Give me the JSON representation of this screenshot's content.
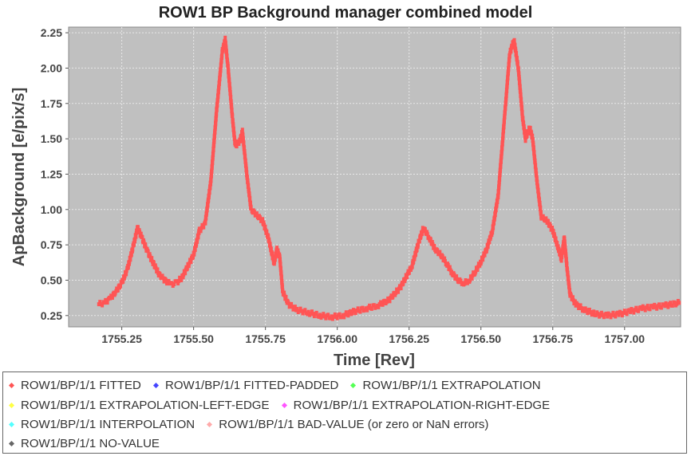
{
  "chart_data": {
    "type": "scatter",
    "title": "ROW1 BP Background manager combined model",
    "xlabel": "Time [Rev]",
    "ylabel": "ApBackground [e/pix/s]",
    "xlim": [
      1755.065,
      1757.195
    ],
    "ylim": [
      0.17,
      2.29
    ],
    "xticks": [
      "1755.25",
      "1755.50",
      "1755.75",
      "1756.00",
      "1756.25",
      "1756.50",
      "1756.75",
      "1757.00"
    ],
    "yticks": [
      "0.25",
      "0.50",
      "0.75",
      "1.00",
      "1.25",
      "1.50",
      "1.75",
      "2.00",
      "2.25"
    ],
    "grid": true,
    "background_color": "#c0c0c0",
    "series": [
      {
        "name": "ROW1/BP/1/1 FITTED",
        "color": "#ff5555",
        "points": [
          [
            1755.17,
            0.33
          ],
          [
            1755.19,
            0.34
          ],
          [
            1755.21,
            0.37
          ],
          [
            1755.23,
            0.42
          ],
          [
            1755.25,
            0.48
          ],
          [
            1755.27,
            0.58
          ],
          [
            1755.29,
            0.74
          ],
          [
            1755.305,
            0.87
          ],
          [
            1755.32,
            0.8
          ],
          [
            1755.34,
            0.7
          ],
          [
            1755.36,
            0.62
          ],
          [
            1755.38,
            0.54
          ],
          [
            1755.4,
            0.5
          ],
          [
            1755.42,
            0.47
          ],
          [
            1755.44,
            0.48
          ],
          [
            1755.46,
            0.52
          ],
          [
            1755.48,
            0.6
          ],
          [
            1755.5,
            0.68
          ],
          [
            1755.52,
            0.85
          ],
          [
            1755.54,
            0.9
          ],
          [
            1755.56,
            1.2
          ],
          [
            1755.58,
            1.7
          ],
          [
            1755.6,
            2.12
          ],
          [
            1755.61,
            2.2
          ],
          [
            1755.62,
            2.0
          ],
          [
            1755.635,
            1.65
          ],
          [
            1755.645,
            1.45
          ],
          [
            1755.66,
            1.48
          ],
          [
            1755.67,
            1.55
          ],
          [
            1755.685,
            1.25
          ],
          [
            1755.7,
            1.0
          ],
          [
            1755.72,
            0.96
          ],
          [
            1755.74,
            0.92
          ],
          [
            1755.76,
            0.8
          ],
          [
            1755.78,
            0.62
          ],
          [
            1755.79,
            0.72
          ],
          [
            1755.8,
            0.66
          ],
          [
            1755.81,
            0.42
          ],
          [
            1755.83,
            0.33
          ],
          [
            1755.86,
            0.29
          ],
          [
            1755.9,
            0.27
          ],
          [
            1755.94,
            0.25
          ],
          [
            1755.98,
            0.24
          ],
          [
            1756.02,
            0.25
          ],
          [
            1756.06,
            0.28
          ],
          [
            1756.1,
            0.3
          ],
          [
            1756.14,
            0.32
          ],
          [
            1756.18,
            0.36
          ],
          [
            1756.22,
            0.45
          ],
          [
            1756.26,
            0.6
          ],
          [
            1756.285,
            0.78
          ],
          [
            1756.3,
            0.87
          ],
          [
            1756.32,
            0.8
          ],
          [
            1756.34,
            0.72
          ],
          [
            1756.36,
            0.68
          ],
          [
            1756.38,
            0.62
          ],
          [
            1756.4,
            0.55
          ],
          [
            1756.42,
            0.5
          ],
          [
            1756.44,
            0.48
          ],
          [
            1756.46,
            0.5
          ],
          [
            1756.48,
            0.56
          ],
          [
            1756.5,
            0.63
          ],
          [
            1756.52,
            0.72
          ],
          [
            1756.54,
            0.85
          ],
          [
            1756.56,
            1.1
          ],
          [
            1756.58,
            1.6
          ],
          [
            1756.6,
            2.1
          ],
          [
            1756.615,
            2.2
          ],
          [
            1756.63,
            2.0
          ],
          [
            1756.645,
            1.65
          ],
          [
            1756.655,
            1.5
          ],
          [
            1756.67,
            1.58
          ],
          [
            1756.68,
            1.5
          ],
          [
            1756.695,
            1.2
          ],
          [
            1756.71,
            0.95
          ],
          [
            1756.73,
            0.92
          ],
          [
            1756.75,
            0.85
          ],
          [
            1756.77,
            0.72
          ],
          [
            1756.78,
            0.65
          ],
          [
            1756.79,
            0.8
          ],
          [
            1756.8,
            0.58
          ],
          [
            1756.81,
            0.4
          ],
          [
            1756.83,
            0.33
          ],
          [
            1756.86,
            0.29
          ],
          [
            1756.9,
            0.26
          ],
          [
            1756.94,
            0.25
          ],
          [
            1756.98,
            0.26
          ],
          [
            1757.02,
            0.28
          ],
          [
            1757.06,
            0.3
          ],
          [
            1757.1,
            0.31
          ],
          [
            1757.14,
            0.32
          ],
          [
            1757.19,
            0.34
          ]
        ]
      }
    ]
  },
  "legend": {
    "rows": [
      [
        {
          "label": "ROW1/BP/1/1 FITTED",
          "color": "#ff5555"
        },
        {
          "label": "ROW1/BP/1/1 FITTED-PADDED",
          "color": "#4444ff"
        },
        {
          "label": "ROW1/BP/1/1 EXTRAPOLATION",
          "color": "#55ff55"
        }
      ],
      [
        {
          "label": "ROW1/BP/1/1 EXTRAPOLATION-LEFT-EDGE",
          "color": "#ffff44"
        },
        {
          "label": "ROW1/BP/1/1 EXTRAPOLATION-RIGHT-EDGE",
          "color": "#ff55ff"
        }
      ],
      [
        {
          "label": "ROW1/BP/1/1 INTERPOLATION",
          "color": "#55ffff"
        },
        {
          "label": "ROW1/BP/1/1 BAD-VALUE (or zero or NaN errors)",
          "color": "#ffaaaa"
        }
      ],
      [
        {
          "label": "ROW1/BP/1/1 NO-VALUE",
          "color": "#666666"
        }
      ]
    ]
  }
}
